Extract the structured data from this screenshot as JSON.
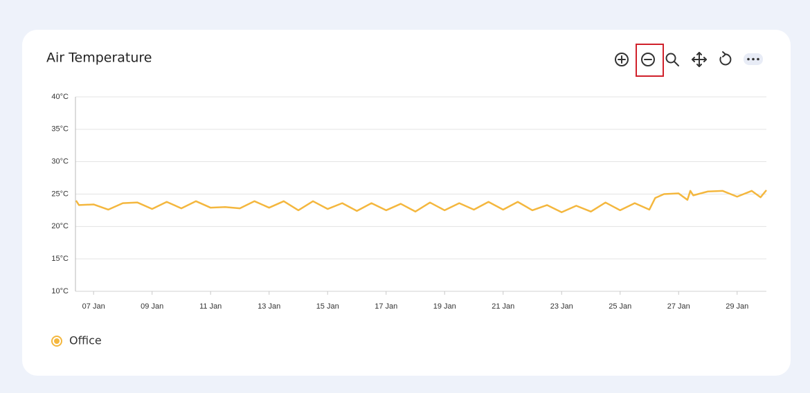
{
  "chart_data": {
    "type": "line",
    "title": "Air Temperature",
    "x": [
      6.4,
      6.5,
      7.0,
      7.5,
      8.0,
      8.5,
      9.0,
      9.5,
      10.0,
      10.5,
      11.0,
      11.5,
      12.0,
      12.5,
      13.0,
      13.5,
      14.0,
      14.5,
      15.0,
      15.5,
      16.0,
      16.5,
      17.0,
      17.5,
      18.0,
      18.5,
      19.0,
      19.5,
      20.0,
      20.5,
      21.0,
      21.5,
      22.0,
      22.5,
      23.0,
      23.5,
      24.0,
      24.5,
      25.0,
      25.5,
      26.0,
      26.2,
      26.5,
      27.0,
      27.3,
      27.4,
      27.5,
      28.0,
      28.5,
      29.0,
      29.5,
      29.8,
      30.0
    ],
    "series": [
      {
        "name": "Office",
        "color": "#f4b73e",
        "values": [
          24.0,
          23.3,
          23.4,
          22.6,
          23.6,
          23.7,
          22.7,
          23.8,
          22.8,
          23.9,
          22.9,
          23.0,
          22.8,
          23.9,
          22.9,
          23.9,
          22.5,
          23.9,
          22.7,
          23.6,
          22.4,
          23.6,
          22.5,
          23.5,
          22.3,
          23.7,
          22.5,
          23.6,
          22.6,
          23.8,
          22.6,
          23.8,
          22.5,
          23.3,
          22.2,
          23.2,
          22.3,
          23.7,
          22.5,
          23.6,
          22.6,
          24.4,
          25.0,
          25.1,
          24.1,
          25.5,
          24.8,
          25.4,
          25.5,
          24.6,
          25.5,
          24.5,
          25.6
        ]
      }
    ],
    "xlim": [
      6.38,
      30.0
    ],
    "xticks": [
      {
        "value": 7,
        "label": "07 Jan"
      },
      {
        "value": 9,
        "label": "09 Jan"
      },
      {
        "value": 11,
        "label": "11 Jan"
      },
      {
        "value": 13,
        "label": "13 Jan"
      },
      {
        "value": 15,
        "label": "15 Jan"
      },
      {
        "value": 17,
        "label": "17 Jan"
      },
      {
        "value": 19,
        "label": "19 Jan"
      },
      {
        "value": 21,
        "label": "21 Jan"
      },
      {
        "value": 23,
        "label": "23 Jan"
      },
      {
        "value": 25,
        "label": "25 Jan"
      },
      {
        "value": 27,
        "label": "27 Jan"
      },
      {
        "value": 29,
        "label": "29 Jan"
      }
    ],
    "ylim": [
      10,
      40
    ],
    "yticks": [
      {
        "value": 10,
        "label": "10°C"
      },
      {
        "value": 15,
        "label": "15°C"
      },
      {
        "value": 20,
        "label": "20°C"
      },
      {
        "value": 25,
        "label": "25°C"
      },
      {
        "value": 30,
        "label": "30°C"
      },
      {
        "value": 35,
        "label": "35°C"
      },
      {
        "value": 40,
        "label": "40°C"
      }
    ],
    "grid": true,
    "legend": "bottom-left"
  }
}
